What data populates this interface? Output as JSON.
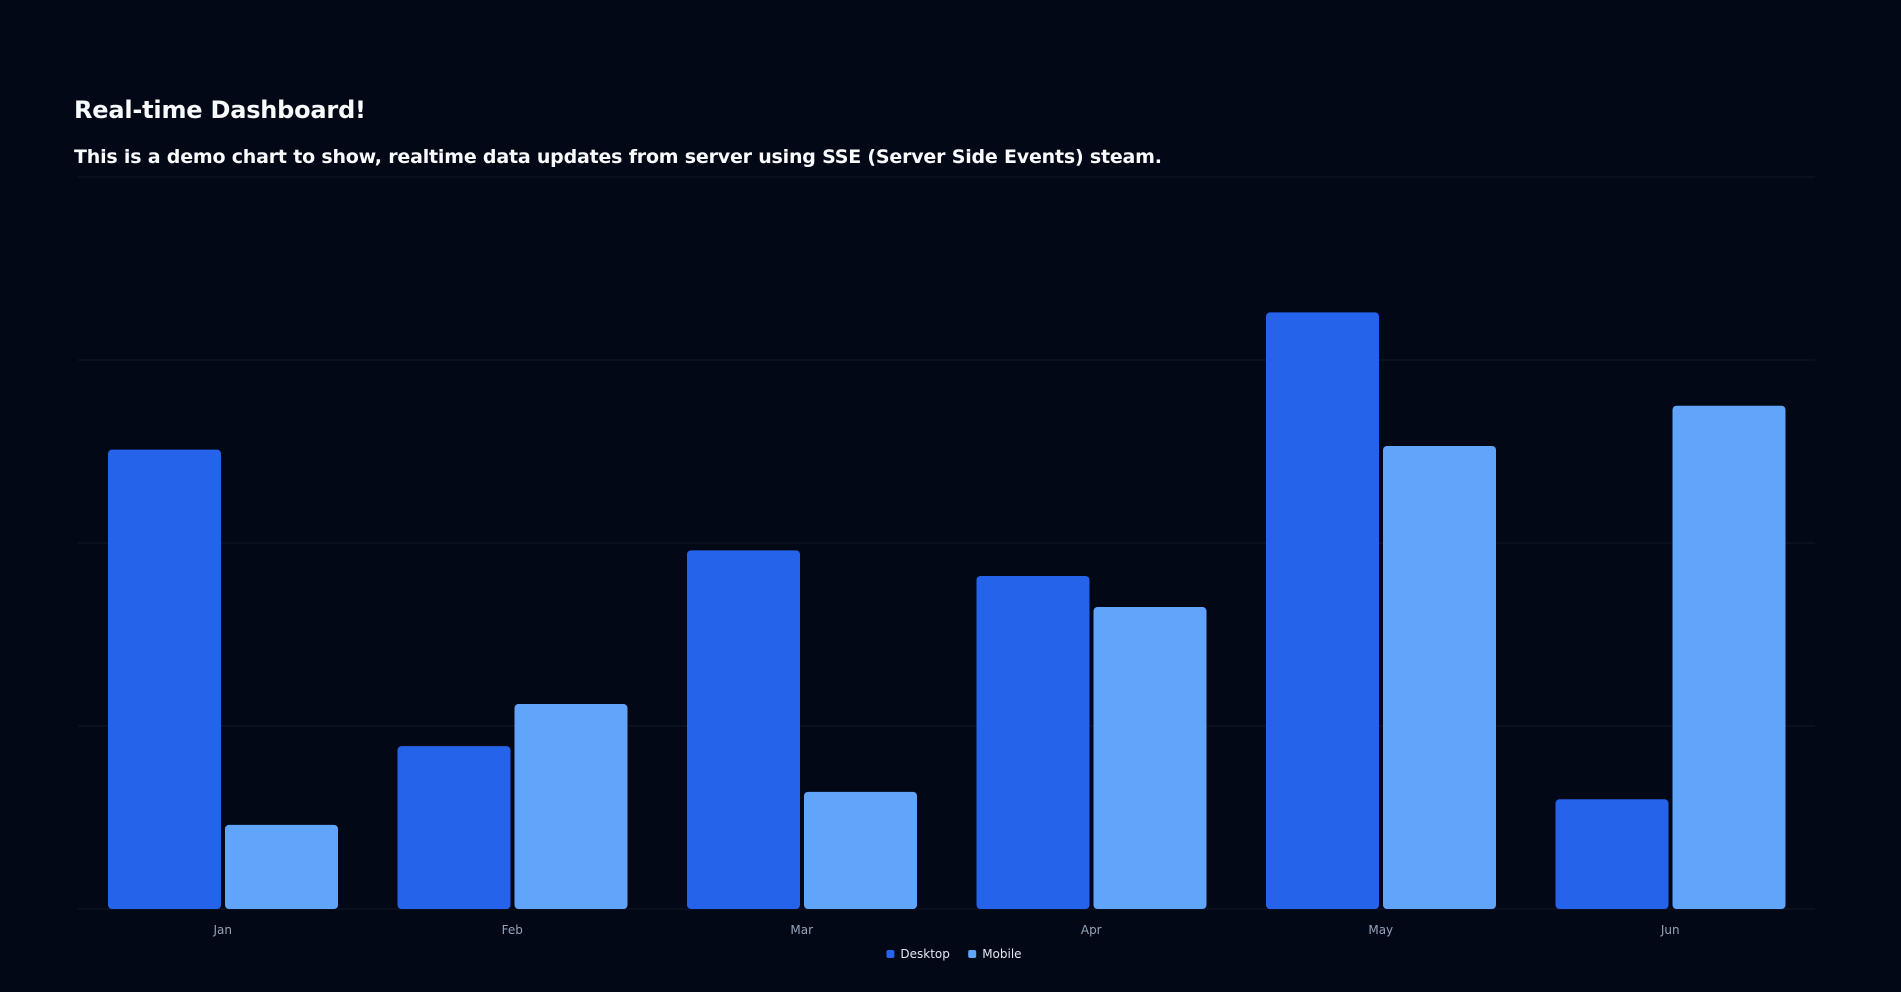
{
  "header": {
    "title": "Real-time Dashboard!",
    "subtitle": "This is a demo chart to show, realtime data updates from server using SSE (Server Side Events) steam."
  },
  "colors": {
    "background": "#030817",
    "desktop": "#2563eb",
    "mobile": "#60a5fa",
    "grid": "#111827",
    "tick_text": "#94a3b8"
  },
  "chart_data": {
    "type": "bar",
    "categories": [
      "Jan",
      "Feb",
      "Mar",
      "Apr",
      "May",
      "Jun"
    ],
    "series": [
      {
        "name": "Desktop",
        "color": "#2563eb",
        "values": [
          251,
          89,
          196,
          182,
          326,
          60
        ]
      },
      {
        "name": "Mobile",
        "color": "#60a5fa",
        "values": [
          46,
          112,
          64,
          165,
          253,
          275
        ]
      }
    ],
    "ylim": [
      0,
      400
    ],
    "grid": true,
    "legend": "bottom-center"
  }
}
